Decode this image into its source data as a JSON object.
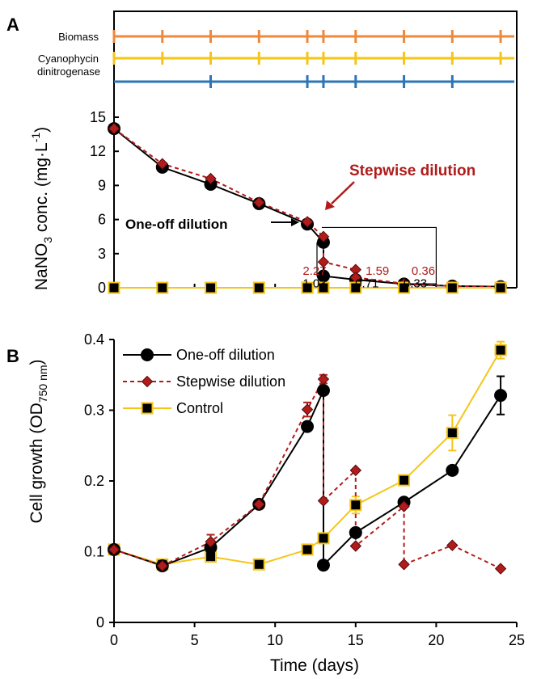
{
  "chart_data": [
    {
      "panel": "A",
      "type": "line",
      "xlim": [
        0,
        25
      ],
      "ylim": [
        0,
        15
      ],
      "yticks": [
        "0",
        "3",
        "6",
        "9",
        "12",
        "15"
      ],
      "ylabel_parts": [
        "NaNO",
        "3",
        " conc. (mg·L",
        "-1",
        ")"
      ],
      "timelines": [
        {
          "name": "Biomass",
          "color": "#f0883a",
          "x": [
            0,
            3,
            6,
            9,
            12,
            13,
            15,
            18,
            21,
            24
          ]
        },
        {
          "name": "Cyanophycin",
          "color": "#f5c518",
          "x": [
            0,
            3,
            6,
            9,
            12,
            13,
            15,
            18,
            21,
            24
          ]
        },
        {
          "name": "dinitrogenase",
          "color": "#2e75b6",
          "x": [
            6,
            12,
            13,
            15,
            18,
            21
          ]
        }
      ],
      "series": [
        {
          "name": "One-off dilution",
          "style": "circle-solid",
          "color": "#000000",
          "x": [
            0,
            3,
            6,
            9,
            12,
            13,
            13,
            15,
            18,
            21,
            24
          ],
          "y": [
            14,
            10.6,
            9.1,
            7.4,
            5.6,
            4.0,
            1.03,
            0.71,
            0.33,
            0.15,
            0.1
          ]
        },
        {
          "name": "Stepwise dilution",
          "style": "diamond-dashed",
          "color": "#b01c1c",
          "x": [
            0,
            3,
            6,
            9,
            12,
            13,
            13,
            15,
            15,
            18,
            18,
            21,
            24
          ],
          "y": [
            14,
            10.9,
            9.6,
            7.5,
            5.8,
            4.5,
            2.27,
            1.59,
            0.9,
            0.36,
            0.3,
            0.15,
            0.1
          ]
        },
        {
          "name": "Control",
          "style": "square-yellow",
          "color": "#f5c518",
          "x": [
            0,
            3,
            6,
            9,
            12,
            13,
            15,
            18,
            21,
            24
          ],
          "y": [
            0,
            0,
            0,
            0,
            0,
            0,
            0,
            0,
            0,
            0
          ]
        }
      ],
      "data_labels": [
        {
          "text": "2.27",
          "color": "#b01c1c",
          "x": 12.45,
          "y": 1.5
        },
        {
          "text": "1.59",
          "color": "#b01c1c",
          "x": 16.35,
          "y": 1.5
        },
        {
          "text": "0.36",
          "color": "#b01c1c",
          "x": 19.2,
          "y": 1.5
        },
        {
          "text": "1.03",
          "color": "#000000",
          "x": 12.45,
          "y": 0.4
        },
        {
          "text": "0.71",
          "color": "#000000",
          "x": 15.7,
          "y": 0.4
        },
        {
          "text": "0.33",
          "color": "#000000",
          "x": 18.7,
          "y": 0.4
        }
      ],
      "annotations": {
        "one_off": "One-off dilution",
        "stepwise": "Stepwise dilution"
      }
    },
    {
      "panel": "B",
      "type": "line",
      "xlim": [
        0,
        25
      ],
      "ylim": [
        0,
        0.4
      ],
      "xticks": [
        "0",
        "5",
        "10",
        "15",
        "20",
        "25"
      ],
      "yticks": [
        "0",
        "0.1",
        "0.2",
        "0.3",
        "0.4"
      ],
      "xlabel": "Time (days)",
      "ylabel_parts": [
        "Cell growth (OD",
        "750 nm",
        ")"
      ],
      "legend_position": "top-left",
      "series": [
        {
          "name": "One-off dilution",
          "style": "circle-solid",
          "color": "#000000",
          "x": [
            0,
            3,
            6,
            9,
            12,
            13,
            13,
            15,
            18,
            21,
            24
          ],
          "y": [
            0.103,
            0.08,
            0.106,
            0.167,
            0.277,
            0.328,
            0.081,
            0.127,
            0.17,
            0.215,
            0.321
          ],
          "err": [
            0,
            0,
            0,
            0,
            0,
            0,
            0,
            0,
            0,
            0,
            0.027
          ]
        },
        {
          "name": "Stepwise dilution",
          "style": "diamond-dashed",
          "color": "#b01c1c",
          "x": [
            0,
            3,
            6,
            9,
            12,
            13,
            13,
            15,
            15,
            18,
            18,
            21,
            24
          ],
          "y": [
            0.103,
            0.08,
            0.114,
            0.167,
            0.301,
            0.344,
            0.172,
            0.215,
            0.108,
            0.164,
            0.082,
            0.109,
            0.076
          ],
          "err": [
            0,
            0,
            0.01,
            0,
            0.01,
            0.006,
            0,
            0,
            0,
            0,
            0,
            0,
            0
          ]
        },
        {
          "name": "Control",
          "style": "square-yellow",
          "color": "#f5c518",
          "x": [
            0,
            3,
            6,
            9,
            12,
            13,
            15,
            18,
            21,
            24
          ],
          "y": [
            0.103,
            0.082,
            0.093,
            0.082,
            0.103,
            0.119,
            0.166,
            0.201,
            0.268,
            0.385
          ],
          "err": [
            0,
            0,
            0,
            0,
            0,
            0,
            0.012,
            0,
            0.025,
            0.012
          ]
        }
      ]
    }
  ]
}
